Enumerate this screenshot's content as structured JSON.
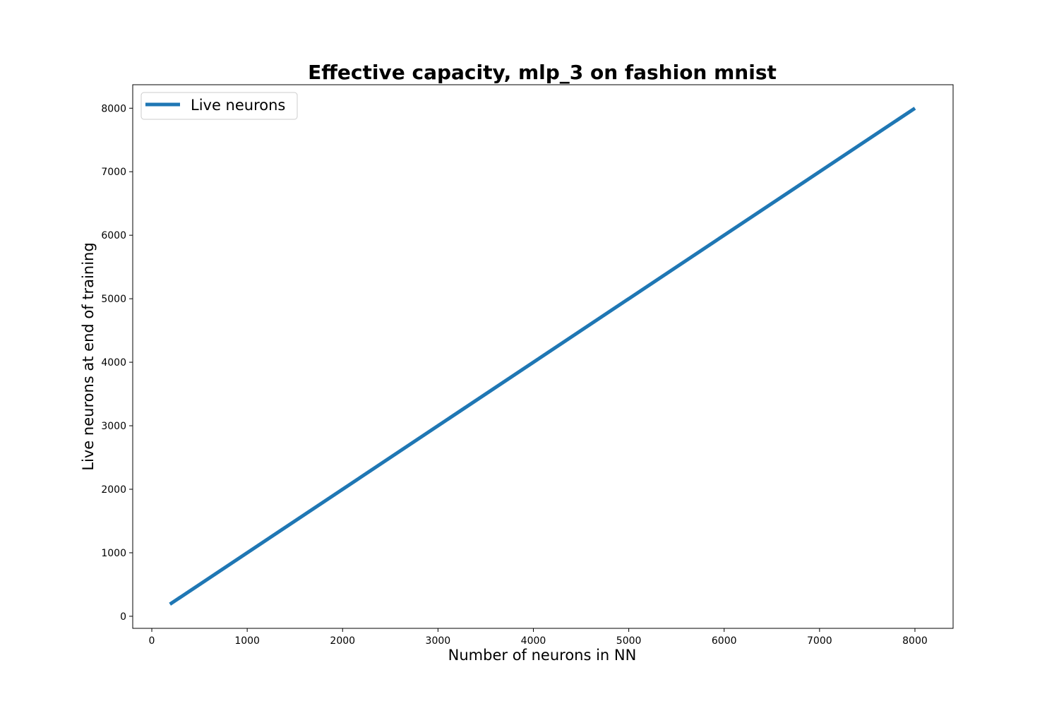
{
  "chart_data": {
    "type": "line",
    "title": "Effective capacity, mlp_3 on fashion mnist",
    "xlabel": "Number of neurons in NN",
    "ylabel": "Live neurons at end of training",
    "xlim": [
      -200,
      8400
    ],
    "ylim": [
      -190,
      8370
    ],
    "xticks": [
      0,
      1000,
      2000,
      3000,
      4000,
      5000,
      6000,
      7000,
      8000
    ],
    "yticks": [
      0,
      1000,
      2000,
      3000,
      4000,
      5000,
      6000,
      7000,
      8000
    ],
    "grid": false,
    "legend_position": "top-left",
    "series": [
      {
        "name": "Live neurons",
        "color": "#1f77b4",
        "x": [
          190,
          8000
        ],
        "y": [
          190,
          8000
        ]
      }
    ]
  }
}
